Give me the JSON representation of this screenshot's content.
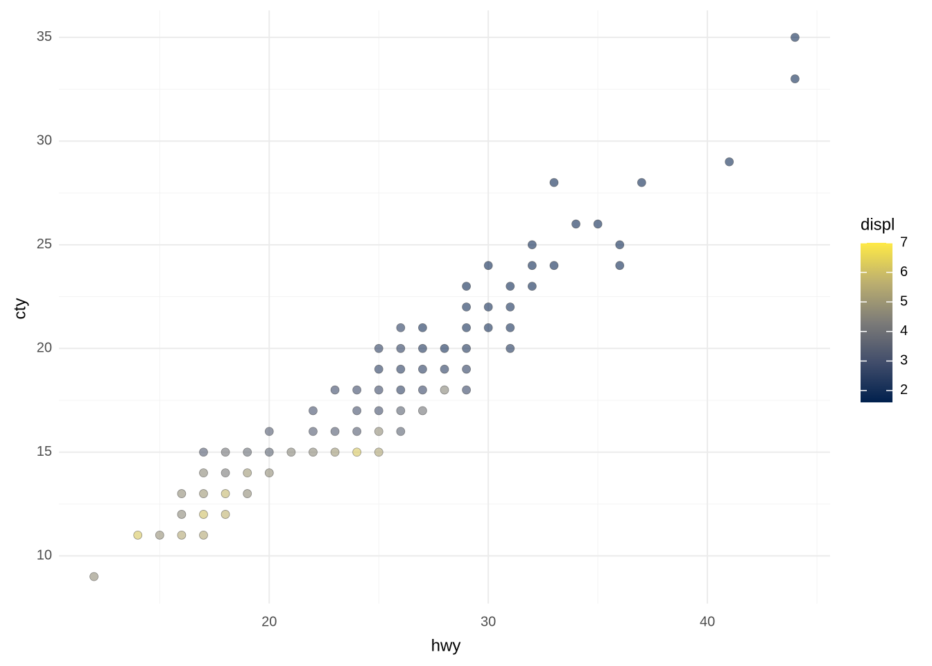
{
  "chart_data": {
    "type": "scatter",
    "x_label": "hwy",
    "y_label": "cty",
    "xlim": [
      10.4,
      45.6
    ],
    "ylim": [
      7.7,
      36.3
    ],
    "xticks": [
      20,
      30,
      40
    ],
    "yticks": [
      10,
      15,
      20,
      25,
      30,
      35
    ],
    "x_minor_ticks": [
      15,
      25,
      35,
      45
    ],
    "y_minor_ticks": [
      12.5,
      17.5,
      22.5,
      27.5,
      32.5
    ],
    "grid": true,
    "legend_position": "right",
    "color_scale": {
      "name": "displ",
      "limits": [
        1.6,
        7.0
      ],
      "ticks": [
        2,
        3,
        4,
        5,
        6,
        7
      ],
      "colors": [
        "#00204D",
        "#414D6B",
        "#7C7B78",
        "#BCAF6F",
        "#FFEA46"
      ]
    },
    "x": [
      44,
      44,
      41,
      37,
      33,
      34,
      35,
      36,
      36,
      32,
      32,
      33,
      30,
      31,
      32,
      29,
      29,
      30,
      31,
      26,
      27,
      29,
      30,
      31,
      25,
      26,
      27,
      28,
      29,
      31,
      25,
      26,
      27,
      28,
      29,
      23,
      24,
      25,
      26,
      27,
      28,
      29,
      22,
      24,
      25,
      26,
      27,
      20,
      22,
      23,
      24,
      25,
      26,
      17,
      18,
      19,
      20,
      21,
      22,
      23,
      24,
      25,
      17,
      18,
      19,
      20,
      16,
      17,
      18,
      19,
      16,
      17,
      18,
      14,
      15,
      16,
      17,
      12
    ],
    "y": [
      35,
      33,
      29,
      28,
      28,
      26,
      26,
      25,
      24,
      25,
      24,
      24,
      24,
      23,
      23,
      23,
      22,
      22,
      22,
      21,
      21,
      21,
      21,
      21,
      20,
      20,
      20,
      20,
      20,
      20,
      19,
      19,
      19,
      19,
      19,
      18,
      18,
      18,
      18,
      18,
      18,
      18,
      17,
      17,
      17,
      17,
      17,
      16,
      16,
      16,
      16,
      16,
      16,
      15,
      15,
      15,
      15,
      15,
      15,
      15,
      15,
      15,
      14,
      14,
      14,
      14,
      13,
      13,
      13,
      13,
      12,
      12,
      12,
      11,
      11,
      11,
      11,
      9
    ],
    "displ": [
      1.9,
      1.9,
      1.9,
      1.8,
      1.8,
      1.8,
      1.8,
      1.8,
      1.8,
      1.8,
      1.8,
      1.8,
      1.8,
      1.8,
      1.8,
      1.8,
      2.0,
      2.0,
      2.0,
      2.4,
      2.0,
      2.0,
      2.0,
      2.0,
      2.5,
      2.5,
      2.2,
      2.0,
      2.2,
      2.2,
      2.4,
      2.4,
      2.4,
      2.4,
      2.5,
      2.8,
      2.8,
      2.8,
      2.5,
      2.7,
      4.5,
      2.7,
      3.0,
      3.0,
      3.0,
      3.5,
      4.0,
      3.3,
      3.3,
      3.3,
      3.3,
      4.7,
      3.5,
      3.3,
      4.0,
      3.8,
      3.5,
      4.5,
      4.6,
      5.0,
      6.2,
      5.3,
      4.6,
      4.2,
      5.0,
      4.7,
      4.7,
      5.0,
      5.8,
      4.7,
      4.6,
      6.0,
      5.7,
      6.2,
      4.8,
      5.4,
      5.4,
      4.7
    ]
  }
}
